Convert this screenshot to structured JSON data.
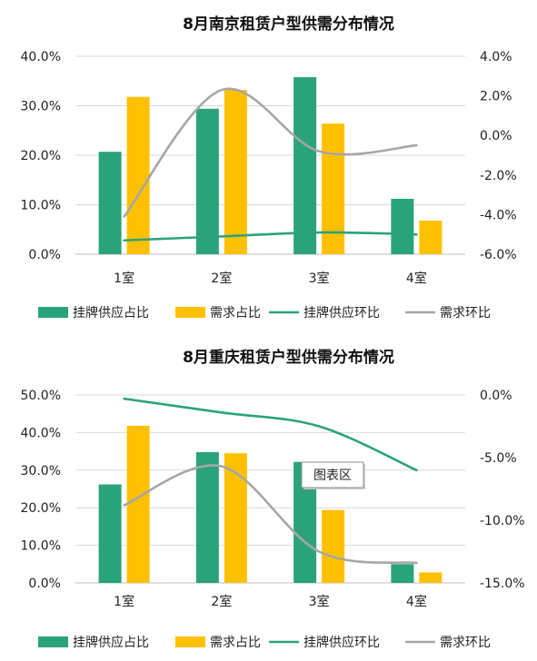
{
  "colors": {
    "supply_bar": "#2BA37A",
    "demand_bar": "#FFC000",
    "supply_line": "#2BA37A",
    "demand_line": "#A6A6A6",
    "grid": "#D9D9D9"
  },
  "chart_data": [
    {
      "type": "bar",
      "title": "8月南京租赁户型供需分布情况",
      "categories": [
        "1室",
        "2室",
        "3室",
        "4室"
      ],
      "ylim": [
        0,
        40
      ],
      "y_ticks": [
        "0.0%",
        "10.0%",
        "20.0%",
        "30.0%",
        "40.0%"
      ],
      "y2lim": [
        -6,
        4
      ],
      "y2_ticks": [
        "-6.0%",
        "-4.0%",
        "-2.0%",
        "0.0%",
        "2.0%",
        "4.0%"
      ],
      "grid": true,
      "legend_position": "bottom",
      "series": [
        {
          "name": "挂牌供应占比",
          "kind": "bar",
          "axis": "left",
          "values": [
            20.7,
            29.4,
            35.8,
            11.2
          ]
        },
        {
          "name": "需求占比",
          "kind": "bar",
          "axis": "left",
          "values": [
            31.8,
            33.2,
            26.4,
            6.8
          ]
        },
        {
          "name": "挂牌供应环比",
          "kind": "line",
          "axis": "right",
          "values": [
            -5.3,
            -5.1,
            -4.9,
            -5.0
          ]
        },
        {
          "name": "需求环比",
          "kind": "line",
          "axis": "right",
          "values": [
            -4.1,
            2.3,
            -0.8,
            -0.5
          ]
        }
      ]
    },
    {
      "type": "bar",
      "title": "8月重庆租赁户型供需分布情况",
      "categories": [
        "1室",
        "2室",
        "3室",
        "4室"
      ],
      "ylim": [
        0,
        50
      ],
      "y_ticks": [
        "0.0%",
        "10.0%",
        "20.0%",
        "30.0%",
        "40.0%",
        "50.0%"
      ],
      "y2lim": [
        -15,
        0
      ],
      "y2_ticks": [
        "-15.0%",
        "-10.0%",
        "-5.0%",
        "0.0%"
      ],
      "grid": true,
      "legend_position": "bottom",
      "tooltip": "图表区",
      "series": [
        {
          "name": "挂牌供应占比",
          "kind": "bar",
          "axis": "left",
          "values": [
            26.2,
            34.8,
            32.2,
            5.0
          ]
        },
        {
          "name": "需求占比",
          "kind": "bar",
          "axis": "left",
          "values": [
            41.8,
            34.5,
            19.4,
            2.8
          ]
        },
        {
          "name": "挂牌供应环比",
          "kind": "line",
          "axis": "right",
          "values": [
            -0.3,
            -1.4,
            -2.5,
            -6.0
          ]
        },
        {
          "name": "需求环比",
          "kind": "line",
          "axis": "right",
          "values": [
            -8.8,
            -5.7,
            -12.5,
            -13.4
          ]
        }
      ]
    }
  ]
}
